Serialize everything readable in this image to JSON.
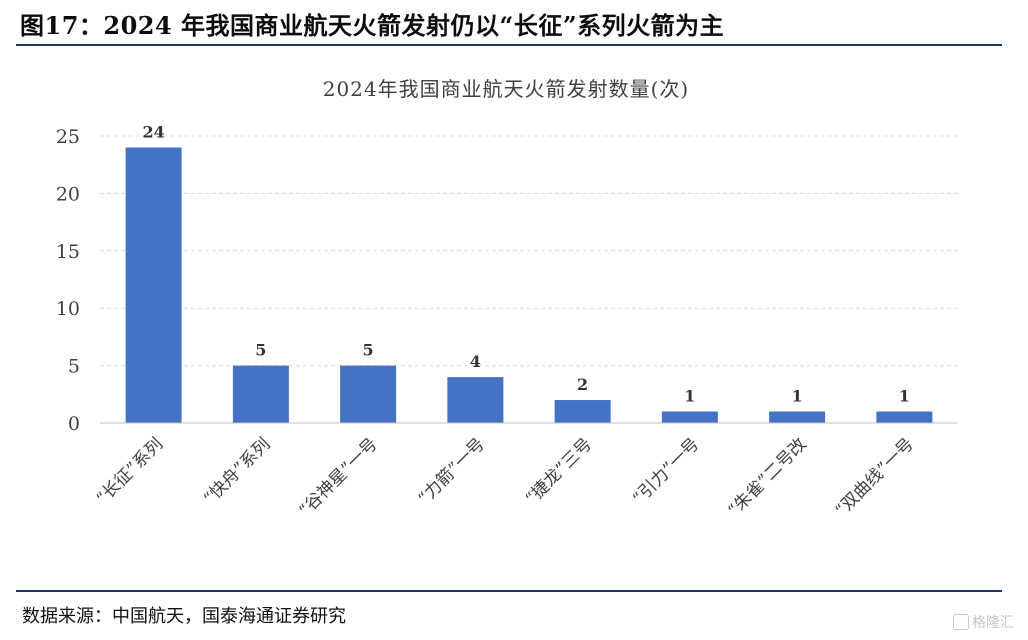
{
  "figure_title": "图17：2024 年我国商业航天火箭发射仍以“长征”系列火箭为主",
  "source": "数据来源：中国航天，国泰海通证券研究",
  "watermark": "格隆汇",
  "colors": {
    "bar": "#4472c4",
    "rule": "#1f3864",
    "grid": "#d9d9d9"
  },
  "chart_data": {
    "type": "bar",
    "title": "2024年我国商业航天火箭发射数量(次)",
    "categories": [
      "“长征”系列",
      "“快舟”系列",
      "“谷神星”一号",
      "“力箭”一号",
      "“捷龙”三号",
      "“引力”一号",
      "“朱雀”二号改",
      "“双曲线”一号"
    ],
    "values": [
      24,
      5,
      5,
      4,
      2,
      1,
      1,
      1
    ],
    "yticks": [
      0,
      5,
      10,
      15,
      20,
      25
    ],
    "ylim": [
      0,
      25
    ],
    "grid": true,
    "data_labels": true
  }
}
